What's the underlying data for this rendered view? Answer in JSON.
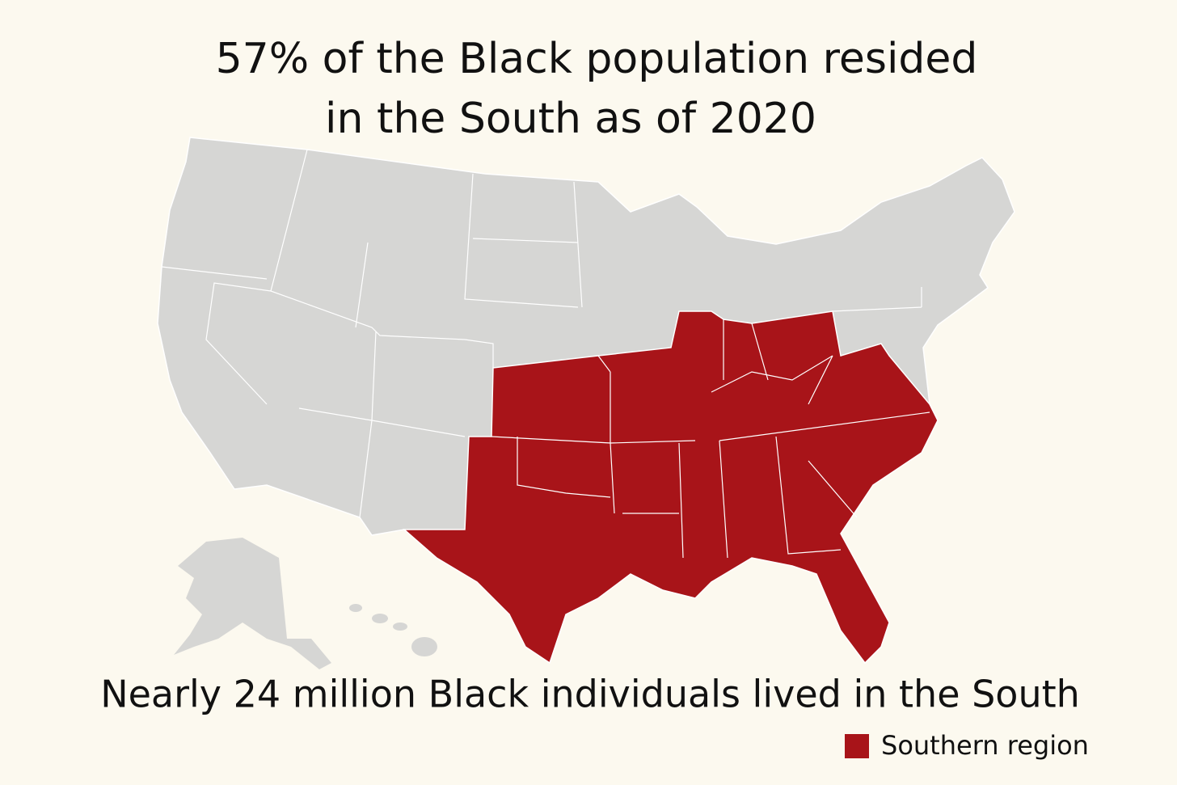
{
  "title": [
    "57% of the Black population resided",
    "in the South as of 2020"
  ],
  "subtitle": "Nearly 24 million Black individuals lived in the South",
  "legend": {
    "label": "Southern region",
    "color": "#a81419"
  }
}
